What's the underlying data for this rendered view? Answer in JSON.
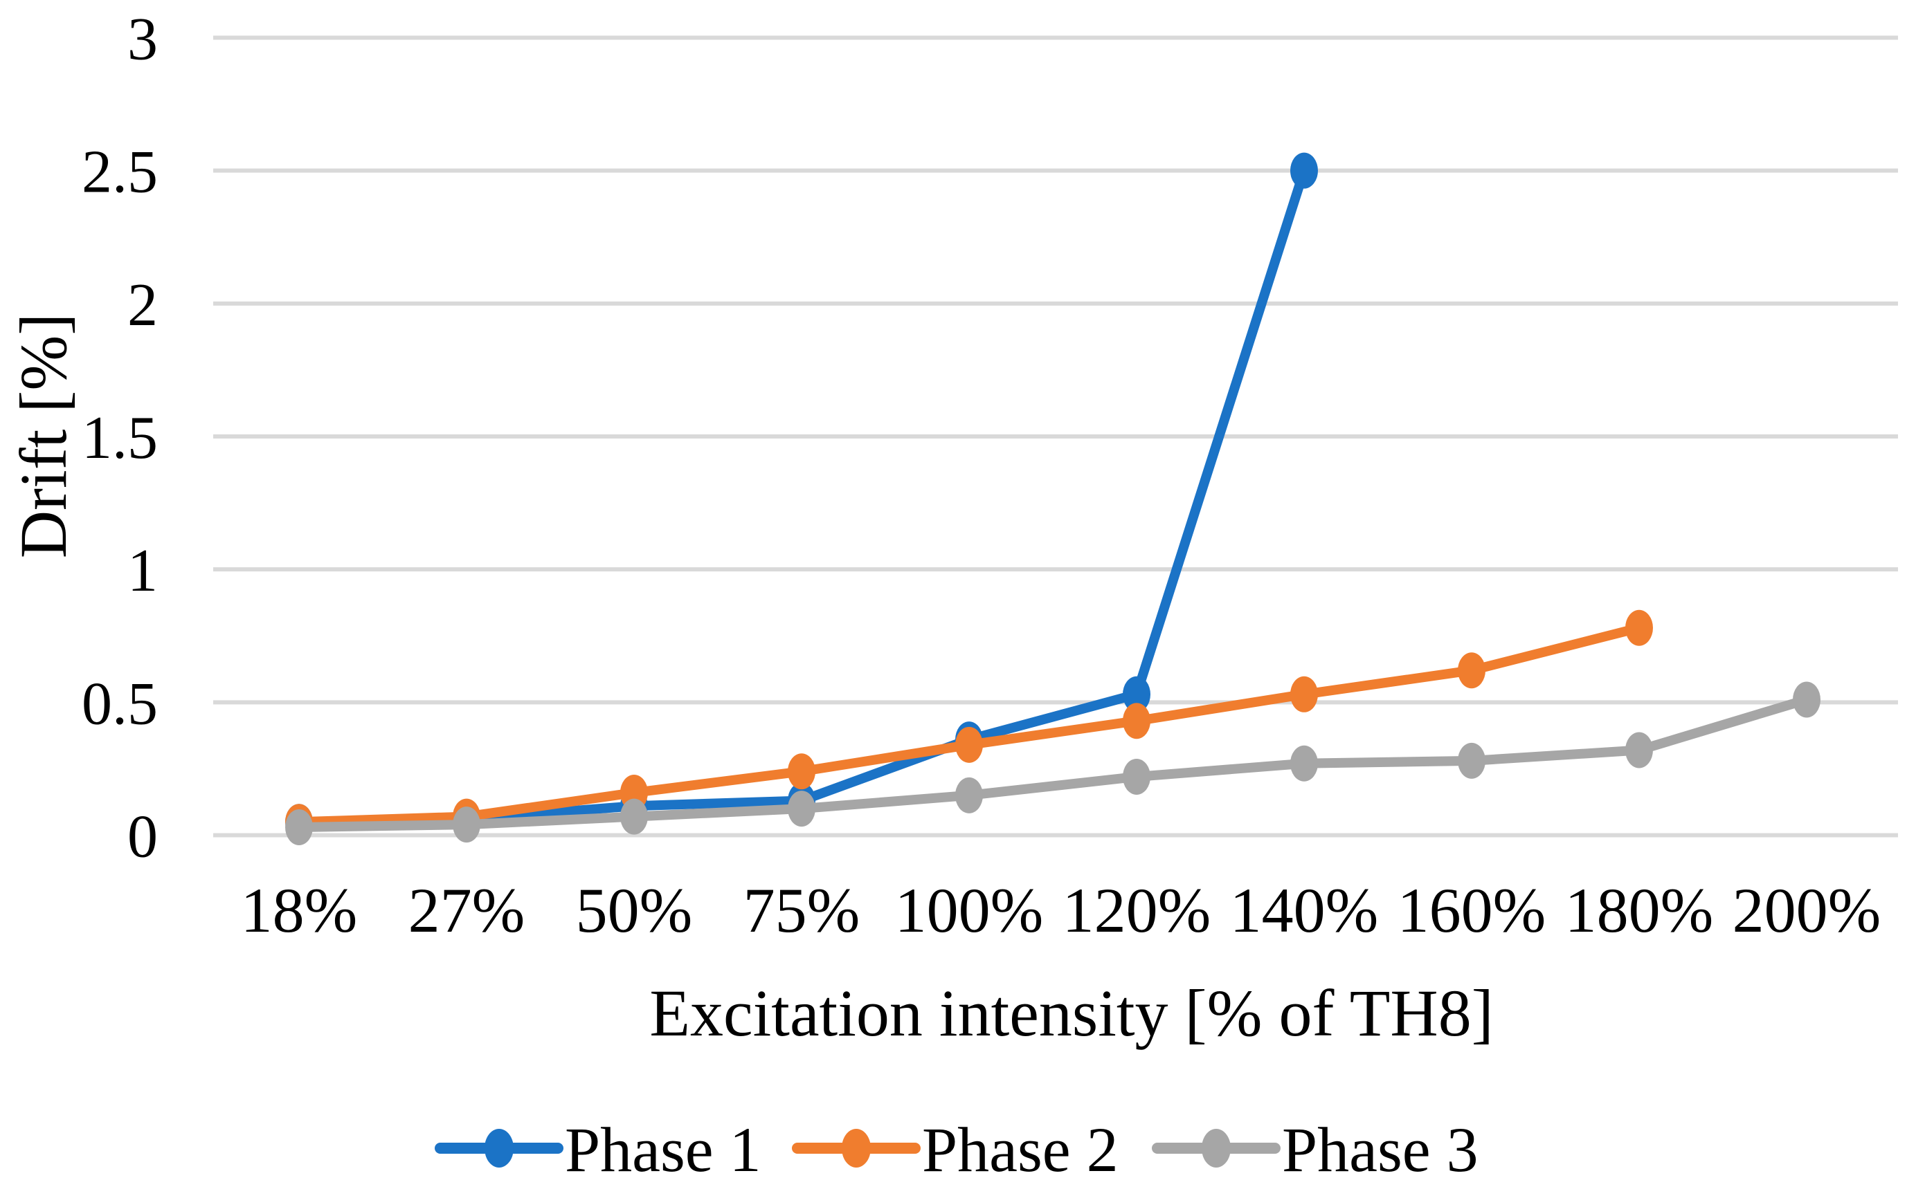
{
  "figure": {
    "background": "#FFFFFF",
    "text_color": "#000000"
  },
  "chart_data": {
    "type": "line",
    "title": "",
    "xlabel": "Excitation intensity [% of TH8]",
    "ylabel": "Drift [%]",
    "categories": [
      "18%",
      "27%",
      "50%",
      "75%",
      "100%",
      "120%",
      "140%",
      "160%",
      "180%",
      "200%"
    ],
    "series": [
      {
        "name": "Phase 1",
        "color": "#1B73C6",
        "values": [
          0.05,
          0.06,
          0.11,
          0.13,
          0.36,
          0.53,
          2.5,
          null,
          null,
          null
        ]
      },
      {
        "name": "Phase 2",
        "color": "#F07D2E",
        "values": [
          0.05,
          0.07,
          0.16,
          0.24,
          0.34,
          0.43,
          0.53,
          0.62,
          0.78,
          null
        ]
      },
      {
        "name": "Phase 3",
        "color": "#A6A6A6",
        "values": [
          0.03,
          0.04,
          0.07,
          0.1,
          0.15,
          0.22,
          0.27,
          0.28,
          0.32,
          0.51
        ]
      }
    ],
    "y_ticks": [
      {
        "value": 0,
        "label": "0"
      },
      {
        "value": 0.5,
        "label": "0.5"
      },
      {
        "value": 1,
        "label": "1"
      },
      {
        "value": 1.5,
        "label": "1.5"
      },
      {
        "value": 2,
        "label": "2"
      },
      {
        "value": 2.5,
        "label": "2.5"
      },
      {
        "value": 3,
        "label": "3"
      }
    ],
    "ylim": [
      0,
      3
    ],
    "grid": true,
    "grid_color": "#D9D9D9",
    "legend_position": "bottom",
    "legend": [
      "Phase 1",
      "Phase 2",
      "Phase 3"
    ]
  }
}
